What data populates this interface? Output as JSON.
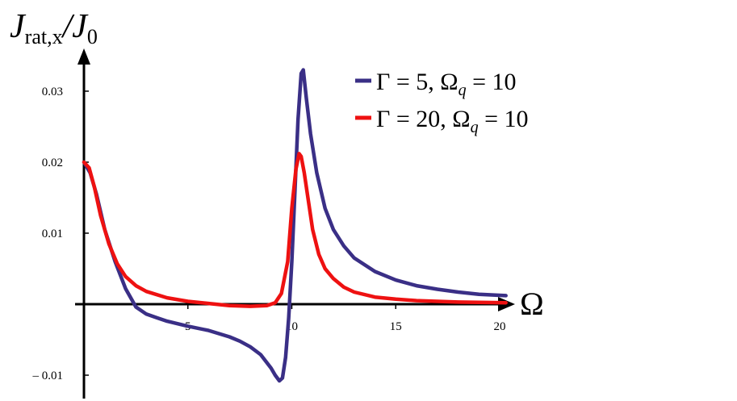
{
  "chart_data": {
    "type": "line",
    "x_axis": {
      "label": "Ω",
      "range": [
        0,
        20.5
      ],
      "ticks": [
        5,
        10,
        15,
        20
      ],
      "tick_labels": [
        "5",
        "10",
        "15",
        "20"
      ]
    },
    "y_axis": {
      "label_main": "J",
      "label_sub": "rat,x",
      "label_tail": "/J",
      "label_tail_sub": "0",
      "range": [
        -0.0125,
        0.0345
      ],
      "ticks": [
        -0.01,
        0.01,
        0.02,
        0.03
      ],
      "tick_labels": [
        "– 0.01",
        "0.01",
        "0.02",
        "0.03"
      ]
    },
    "grid": false,
    "legend_placement": "top-right",
    "series": [
      {
        "name": "Γ = 5, Ω_q = 10",
        "legend_parts": [
          "Γ = 5, Ω",
          "q",
          " = 10"
        ],
        "color": "#3a2f86",
        "points": [
          [
            0,
            0.02
          ],
          [
            0.3,
            0.0185
          ],
          [
            0.6,
            0.0155
          ],
          [
            1.0,
            0.0105
          ],
          [
            1.5,
            0.006
          ],
          [
            2.0,
            0.0022
          ],
          [
            2.5,
            -0.0004
          ],
          [
            3.0,
            -0.0014
          ],
          [
            3.5,
            -0.0019
          ],
          [
            4.0,
            -0.0024
          ],
          [
            5.0,
            -0.0031
          ],
          [
            6.0,
            -0.0037
          ],
          [
            7.0,
            -0.0046
          ],
          [
            7.5,
            -0.0052
          ],
          [
            8.0,
            -0.006
          ],
          [
            8.5,
            -0.0071
          ],
          [
            9.0,
            -0.009
          ],
          [
            9.2,
            -0.01
          ],
          [
            9.4,
            -0.0108
          ],
          [
            9.55,
            -0.0104
          ],
          [
            9.7,
            -0.0075
          ],
          [
            9.85,
            -0.002
          ],
          [
            10.0,
            0.006
          ],
          [
            10.15,
            0.016
          ],
          [
            10.3,
            0.026
          ],
          [
            10.45,
            0.0325
          ],
          [
            10.55,
            0.033
          ],
          [
            10.7,
            0.029
          ],
          [
            10.9,
            0.024
          ],
          [
            11.2,
            0.0185
          ],
          [
            11.6,
            0.0135
          ],
          [
            12.0,
            0.0105
          ],
          [
            12.5,
            0.0082
          ],
          [
            13.0,
            0.0065
          ],
          [
            14.0,
            0.0046
          ],
          [
            15.0,
            0.0034
          ],
          [
            16.0,
            0.0026
          ],
          [
            17.0,
            0.0021
          ],
          [
            18.0,
            0.0017
          ],
          [
            19.0,
            0.0014
          ],
          [
            20.3,
            0.0012
          ]
        ]
      },
      {
        "name": "Γ = 20, Ω_q = 10",
        "legend_parts": [
          "Γ = 20, Ω",
          "q",
          " = 10"
        ],
        "color": "#ee1111",
        "points": [
          [
            0,
            0.02
          ],
          [
            0.25,
            0.0192
          ],
          [
            0.5,
            0.0165
          ],
          [
            0.8,
            0.0125
          ],
          [
            1.2,
            0.0085
          ],
          [
            1.6,
            0.0057
          ],
          [
            2.0,
            0.0039
          ],
          [
            2.5,
            0.0026
          ],
          [
            3.0,
            0.0018
          ],
          [
            4.0,
            0.0009
          ],
          [
            5.0,
            0.0004
          ],
          [
            6.0,
            0.0001
          ],
          [
            7.0,
            -0.0002
          ],
          [
            8.0,
            -0.0003
          ],
          [
            8.8,
            -0.0002
          ],
          [
            9.2,
            0.0002
          ],
          [
            9.5,
            0.0015
          ],
          [
            9.8,
            0.006
          ],
          [
            10.0,
            0.0135
          ],
          [
            10.2,
            0.019
          ],
          [
            10.35,
            0.0212
          ],
          [
            10.45,
            0.0208
          ],
          [
            10.6,
            0.0185
          ],
          [
            10.8,
            0.0145
          ],
          [
            11.0,
            0.0105
          ],
          [
            11.3,
            0.007
          ],
          [
            11.6,
            0.005
          ],
          [
            12.0,
            0.0036
          ],
          [
            12.5,
            0.0024
          ],
          [
            13.0,
            0.0017
          ],
          [
            14.0,
            0.001
          ],
          [
            15.0,
            0.0007
          ],
          [
            16.0,
            0.0005
          ],
          [
            18.0,
            0.0003
          ],
          [
            20.3,
            0.0002
          ]
        ]
      }
    ]
  }
}
